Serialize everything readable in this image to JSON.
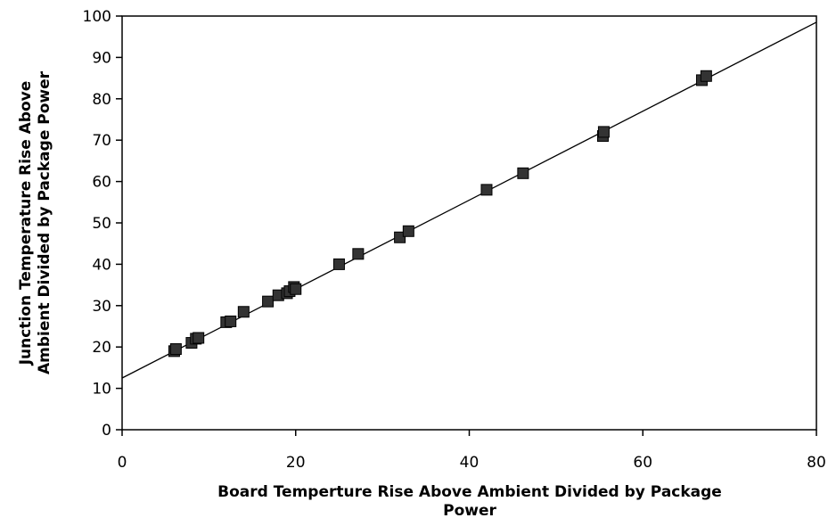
{
  "chart_data": {
    "type": "scatter",
    "title": "",
    "xlabel_lines": [
      "Board Temperture Rise Above Ambient Divided by Package",
      "Power"
    ],
    "ylabel_lines": [
      "Junction Temperature Rise Above",
      "Ambient Divided by Package Power"
    ],
    "xlim": [
      0,
      80
    ],
    "ylim": [
      0,
      100
    ],
    "x_ticks": [
      0,
      20,
      40,
      60,
      80
    ],
    "y_ticks": [
      0,
      10,
      20,
      30,
      40,
      50,
      60,
      70,
      80,
      90,
      100
    ],
    "grid": false,
    "legend": "none",
    "marker": "square",
    "marker_color": "#333333",
    "line_color": "#000000",
    "series": [
      {
        "points": [
          {
            "x": 6.0,
            "y": 19.0
          },
          {
            "x": 6.2,
            "y": 19.5
          },
          {
            "x": 8.0,
            "y": 21.0
          },
          {
            "x": 8.5,
            "y": 22.0
          },
          {
            "x": 8.8,
            "y": 22.2
          },
          {
            "x": 12.0,
            "y": 26.0
          },
          {
            "x": 12.5,
            "y": 26.2
          },
          {
            "x": 14.0,
            "y": 28.5
          },
          {
            "x": 16.8,
            "y": 31.0
          },
          {
            "x": 18.0,
            "y": 32.5
          },
          {
            "x": 19.0,
            "y": 33.0
          },
          {
            "x": 19.3,
            "y": 33.5
          },
          {
            "x": 19.8,
            "y": 34.5
          },
          {
            "x": 20.0,
            "y": 34.0
          },
          {
            "x": 25.0,
            "y": 40.0
          },
          {
            "x": 27.2,
            "y": 42.5
          },
          {
            "x": 32.0,
            "y": 46.5
          },
          {
            "x": 33.0,
            "y": 48.0
          },
          {
            "x": 42.0,
            "y": 58.0
          },
          {
            "x": 46.2,
            "y": 62.0
          },
          {
            "x": 55.4,
            "y": 71.0
          },
          {
            "x": 55.5,
            "y": 72.0
          },
          {
            "x": 66.8,
            "y": 84.5
          },
          {
            "x": 67.3,
            "y": 85.5
          }
        ]
      }
    ],
    "fit_line": {
      "x": [
        0,
        80
      ],
      "y": [
        12.5,
        98.5
      ]
    }
  }
}
